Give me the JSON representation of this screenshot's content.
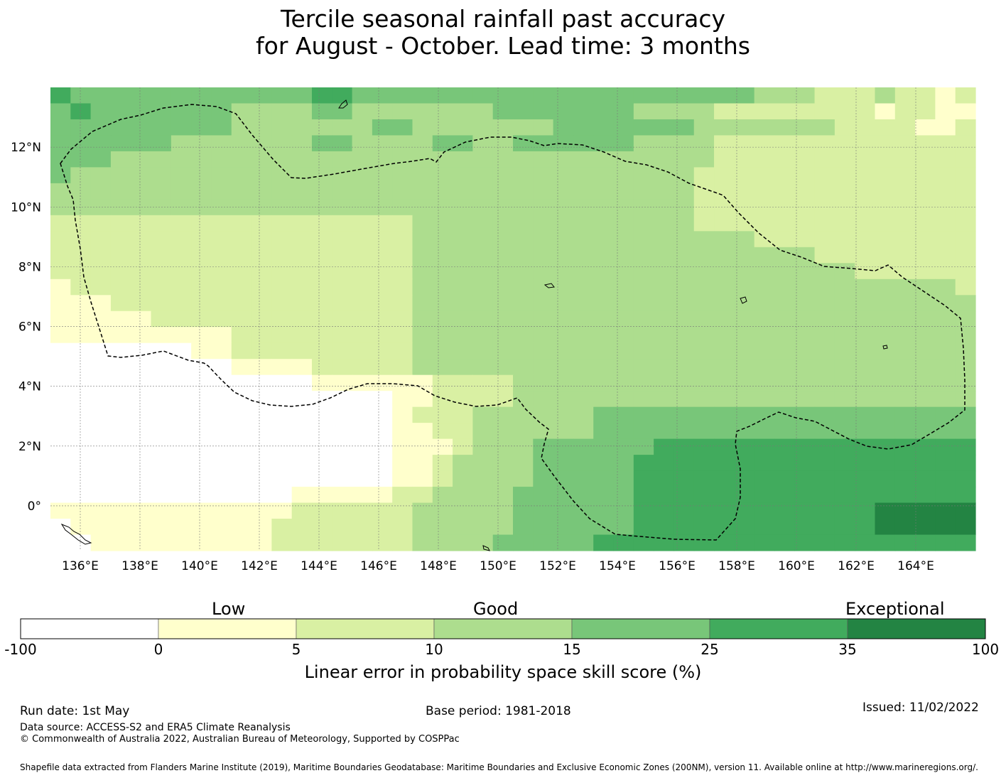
{
  "title": {
    "line1": "Tercile seasonal rainfall past accuracy",
    "line2": "for August - October. Lead time: 3 months"
  },
  "map": {
    "lon_labels": [
      "136°E",
      "138°E",
      "140°E",
      "142°E",
      "144°E",
      "146°E",
      "148°E",
      "150°E",
      "152°E",
      "154°E",
      "156°E",
      "158°E",
      "160°E",
      "162°E",
      "164°E"
    ],
    "lon_values": [
      136,
      138,
      140,
      142,
      144,
      146,
      148,
      150,
      152,
      154,
      156,
      158,
      160,
      162,
      164
    ],
    "lat_labels": [
      "12°N",
      "10°N",
      "8°N",
      "6°N",
      "4°N",
      "2°N",
      "0°"
    ],
    "lat_values": [
      12,
      10,
      8,
      6,
      4,
      2,
      0
    ],
    "lon_range": [
      135,
      166
    ],
    "lat_range": [
      -1.5,
      14
    ],
    "grid_rows": [
      "5444444444444554444444444444444444433322232212",
      "4544444443333443333333444444433332222222212211",
      "4444444443333333443333333444444433333332222112",
      "4444443333333443333443344444433332222222222222",
      "4443333333333333333333333333333332222222222222",
      "4333333333333333333333333333333322222222222222",
      "3333333333333333333333333333333322222222222222",
      "3333333333333333333333333333333322222222222222",
      "2222222222222222223333333333333322222222222222",
      "2222222222222222223333333333333333322222222222",
      "2222222222222222223333333333333333333322222222",
      "2222222222222222223333333333333333333333222222",
      "1222222222222222223333333333333333333333333332",
      "1112222222222222223333333333333333333333333333",
      "1111122222222222223333333333333333333333333333",
      "1111111112222222223333333333333333333333333333",
      "0000000112222222223333333333333333333333333333",
      "0000000001111222223333333333333333333333333333",
      "0000000000000111111222233333333333333333333333",
      "0000000000000000011222233333333333333333333333",
      "0000000000000000012223333334444444444444444444",
      "0000000000000000011223333334444444444444444444",
      "0000000000000000011123334444445555555555555555",
      "0000000000000000011233334444455555555555555555",
      "0000000000000000011233334444455555555555555555",
      "0000000000001111122333344444455555555555555555",
      "1111111111112222223333344444455555555555566666",
      "0111111111122222223333344444455555555555566666",
      "0011111111122222223333444445555555555555555555"
    ]
  },
  "colorbar": {
    "category_labels": [
      "Low",
      "Good",
      "Exceptional"
    ],
    "ticks": [
      "-100",
      "0",
      "5",
      "10",
      "15",
      "25",
      "35",
      "100"
    ],
    "colors": [
      "#ffffff",
      "#ffffcc",
      "#d9f0a3",
      "#addd8e",
      "#78c679",
      "#41ab5d",
      "#238443"
    ],
    "title": "Linear error in probability space skill score (%)"
  },
  "footer": {
    "run_date": "Run date: 1st May",
    "base_period": "Base period: 1981-2018",
    "issued": "Issued: 11/02/2022",
    "data_source": "Data source: ACCESS-S2 and ERA5 Climate Reanalysis",
    "copyright": "© Commonwealth of Australia 2022, Australian Bureau of Meteorology, Supported by COSPPac",
    "shapefile": "Shapefile data extracted from Flanders Marine Institute (2019), Maritime Boundaries Geodatabase: Maritime Boundaries and Exclusive Economic Zones (200NM), version 11. Available online at http://www.marineregions.org/."
  }
}
